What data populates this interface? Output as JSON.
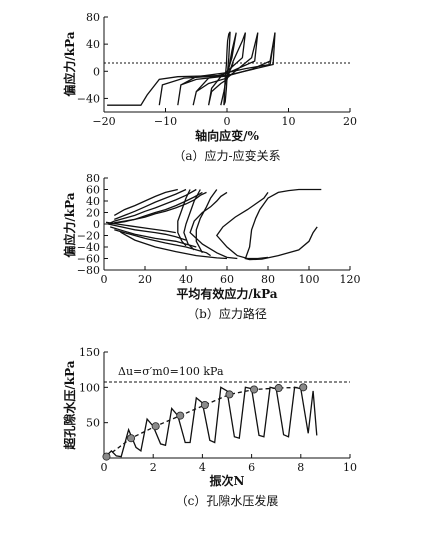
{
  "chart_data": [
    {
      "type": "line",
      "panel": "a",
      "caption": "（a）应力-应变关系",
      "xlabel": "轴向应变/%",
      "ylabel": "偏应力/kPa",
      "xlim": [
        -20,
        20
      ],
      "ylim": [
        -60,
        80
      ],
      "xticks": [
        "−20",
        "−10",
        "0",
        "10",
        "20"
      ],
      "yticks": [
        "80",
        "40",
        "0",
        "−40"
      ],
      "grid": false,
      "series": [
        {
          "x": [
            -0.5,
            -0.3,
            -0.1,
            0.0,
            0.1,
            0.3,
            0.5,
            0.3,
            0.1,
            0.0,
            -0.1,
            -0.3,
            -0.5
          ],
          "y": [
            -50,
            -10,
            10,
            30,
            45,
            55,
            58,
            20,
            0,
            -10,
            -25,
            -45,
            -50
          ]
        },
        {
          "x": [
            -1.0,
            -0.5,
            0.0,
            0.4,
            0.8,
            1.5,
            0.8,
            0.3,
            0.0,
            -0.5,
            -1.0
          ],
          "y": [
            -50,
            -30,
            -5,
            10,
            30,
            57,
            20,
            5,
            -5,
            -30,
            -50
          ]
        },
        {
          "x": [
            -3.0,
            -2.5,
            -1.0,
            0.0,
            1.0,
            2.5,
            3.0,
            2.5,
            1.0,
            0.0,
            -1.0,
            -2.5,
            -3.0
          ],
          "y": [
            -50,
            -30,
            -18,
            -12,
            15,
            45,
            57,
            20,
            8,
            0,
            -8,
            -25,
            -50
          ]
        },
        {
          "x": [
            -5.5,
            -5.0,
            -3.0,
            0.0,
            2.0,
            4.0,
            5.0,
            4.5,
            2.0,
            0.0,
            -3.0,
            -5.0,
            -5.5
          ],
          "y": [
            -50,
            -30,
            -18,
            -10,
            5,
            20,
            57,
            15,
            5,
            -3,
            -10,
            -30,
            -50
          ]
        },
        {
          "x": [
            -8.0,
            -7.5,
            -5.0,
            0.0,
            4.0,
            7.0,
            7.8,
            7.0,
            3.0,
            0.0,
            -5.0,
            -7.5,
            -8.0
          ],
          "y": [
            -50,
            -20,
            -12,
            -7,
            3,
            15,
            57,
            10,
            4,
            -2,
            -8,
            -20,
            -50
          ]
        },
        {
          "x": [
            -11.0,
            -10.5,
            -7.0,
            0.0,
            7.5,
            7.8
          ],
          "y": [
            -50,
            -20,
            -10,
            -6,
            10,
            57
          ]
        },
        {
          "x": [
            -19.5,
            -14.0,
            -13.0,
            -11.0,
            -8.0,
            0.0,
            1.0
          ],
          "y": [
            -50,
            -50,
            -35,
            -12,
            -8,
            -6,
            10
          ]
        }
      ]
    },
    {
      "type": "line",
      "panel": "b",
      "caption": "（b）应力路径",
      "xlabel": "平均有效应力/kPa",
      "ylabel": "偏应力/kPa",
      "xlim": [
        0,
        120
      ],
      "ylim": [
        -80,
        80
      ],
      "xticks": [
        "0",
        "20",
        "40",
        "60",
        "80",
        "100",
        "120"
      ],
      "yticks": [
        "80",
        "60",
        "40",
        "20",
        "0",
        "−20",
        "−40",
        "−60",
        "−80"
      ],
      "grid": false,
      "series": [
        {
          "x": [
            104,
            102,
            100,
            95,
            85,
            77,
            71,
            69,
            71,
            72,
            74,
            76,
            78,
            80,
            85,
            90,
            95,
            99,
            102,
            104,
            106
          ],
          "y": [
            -5,
            -15,
            -30,
            -45,
            -55,
            -61,
            -62,
            -60,
            -40,
            -10,
            10,
            25,
            35,
            45,
            55,
            58,
            60,
            60,
            60,
            60,
            60
          ]
        },
        {
          "x": [
            80,
            78,
            74,
            70,
            64,
            58,
            55,
            60,
            65,
            70,
            75,
            80
          ],
          "y": [
            55,
            45,
            35,
            25,
            12,
            -5,
            -20,
            -40,
            -55,
            -60,
            -60,
            -58
          ]
        },
        {
          "x": [
            60,
            57,
            55,
            52,
            48,
            44,
            42,
            48,
            55,
            60,
            65
          ],
          "y": [
            55,
            48,
            40,
            30,
            20,
            5,
            -15,
            -35,
            -50,
            -58,
            -60
          ]
        },
        {
          "x": [
            8,
            15,
            25,
            35,
            45,
            55,
            60
          ],
          "y": [
            -14,
            -28,
            -40,
            -48,
            -55,
            -59,
            -60
          ]
        },
        {
          "x": [
            5,
            20,
            30,
            40,
            45,
            50,
            52
          ],
          "y": [
            -10,
            -25,
            -33,
            -40,
            -45,
            -50,
            -55
          ]
        },
        {
          "x": [
            3,
            15,
            25,
            35,
            40,
            45
          ],
          "y": [
            -5,
            -18,
            -25,
            -30,
            -35,
            -40
          ]
        },
        {
          "x": [
            2,
            15,
            25,
            30,
            35,
            40
          ],
          "y": [
            0,
            -10,
            -15,
            -18,
            -22,
            -28
          ]
        },
        {
          "x": [
            1,
            12,
            22,
            30,
            35
          ],
          "y": [
            3,
            -3,
            -8,
            -12,
            -15
          ]
        },
        {
          "x": [
            45,
            40,
            35,
            30,
            25,
            20,
            15,
            10,
            5,
            2
          ],
          "y": [
            60,
            50,
            42,
            35,
            28,
            22,
            15,
            10,
            5,
            0
          ]
        },
        {
          "x": [
            40,
            35,
            30,
            25,
            20,
            15,
            10,
            5
          ],
          "y": [
            60,
            52,
            45,
            38,
            30,
            22,
            15,
            8
          ]
        },
        {
          "x": [
            36,
            30,
            25,
            20,
            15,
            10,
            5
          ],
          "y": [
            60,
            55,
            48,
            40,
            32,
            25,
            15
          ]
        },
        {
          "x": [
            50,
            47,
            44,
            40,
            35,
            30,
            25,
            20,
            15,
            10,
            5
          ],
          "y": [
            55,
            50,
            42,
            35,
            28,
            22,
            18,
            12,
            8,
            5,
            2
          ]
        },
        {
          "x": [
            48,
            44,
            40,
            35,
            30,
            25,
            20,
            15,
            10,
            6,
            3
          ],
          "y": [
            55,
            47,
            40,
            32,
            25,
            20,
            14,
            8,
            4,
            2,
            0
          ]
        },
        {
          "x": [
            55,
            52,
            50,
            47,
            45,
            45,
            48
          ],
          "y": [
            60,
            45,
            30,
            10,
            -10,
            -30,
            -50
          ]
        },
        {
          "x": [
            47,
            44,
            42,
            40,
            39,
            41,
            44
          ],
          "y": [
            60,
            40,
            20,
            0,
            -15,
            -35,
            -45
          ]
        },
        {
          "x": [
            42,
            40,
            38,
            36,
            36,
            38,
            40
          ],
          "y": [
            60,
            45,
            25,
            5,
            -15,
            -30,
            -38
          ]
        }
      ]
    },
    {
      "type": "line",
      "panel": "c",
      "caption": "（c）孔隙水压发展",
      "xlabel": "振次N",
      "ylabel": "超孔隙水压/kPa",
      "xlim": [
        0,
        10
      ],
      "ylim": [
        0,
        150
      ],
      "xticks": [
        "0",
        "2",
        "4",
        "6",
        "8",
        "10"
      ],
      "yticks": [
        "150",
        "100",
        "50"
      ],
      "grid": false,
      "annotation": "Δu=σ′m0=100 kPa",
      "reference_line": {
        "y": 100
      },
      "series": [
        {
          "x": [
            0.0,
            0.3,
            0.5,
            0.7,
            1.0,
            1.3,
            1.5,
            1.75,
            2.0,
            2.3,
            2.5,
            2.75,
            3.0,
            3.3,
            3.5,
            3.75,
            4.0,
            4.3,
            4.5,
            4.75,
            5.0,
            5.3,
            5.5,
            5.75,
            6.0,
            6.3,
            6.5,
            6.75,
            7.0,
            7.3,
            7.5,
            7.75,
            8.0,
            8.3,
            8.5,
            8.65
          ],
          "y": [
            0,
            10,
            3,
            2,
            40,
            15,
            10,
            55,
            45,
            20,
            18,
            70,
            60,
            22,
            22,
            85,
            78,
            25,
            22,
            100,
            95,
            30,
            28,
            100,
            98,
            32,
            30,
            100,
            98,
            33,
            30,
            100,
            98,
            35,
            95,
            32
          ]
        },
        {
          "x": [
            0.1,
            1.1,
            2.1,
            3.1,
            4.1,
            5.1,
            6.1,
            7.1,
            8.1
          ],
          "y": [
            2,
            28,
            45,
            60,
            75,
            90,
            97,
            99,
            100
          ],
          "style": "dashed-markers"
        }
      ]
    }
  ]
}
